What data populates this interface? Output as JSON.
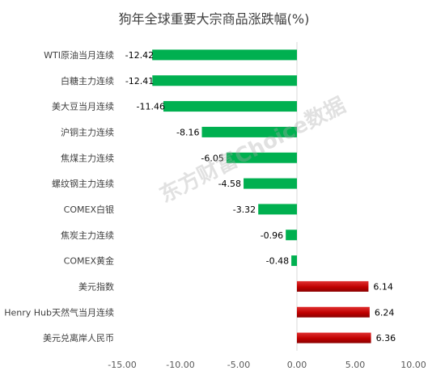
{
  "chart_data": {
    "type": "bar",
    "orientation": "horizontal",
    "title": "狗年全球重要大宗商品涨跌幅(%)",
    "categories": [
      "WTI原油当月连续",
      "白糖主力连续",
      "美大豆当月连续",
      "沪铜主力连续",
      "焦煤主力连续",
      "螺纹钢主力连续",
      "COMEX白银",
      "焦炭主力连续",
      "COMEX黄金",
      "美元指数",
      "Henry Hub天然气当月连续",
      "美元兑离岸人民币"
    ],
    "values": [
      -12.42,
      -12.41,
      -11.46,
      -8.16,
      -6.05,
      -4.58,
      -3.32,
      -0.96,
      -0.48,
      6.14,
      6.24,
      6.36
    ],
    "value_labels": [
      "-12.42",
      "-12.41",
      "-11.46",
      "-8.16",
      "-6.05",
      "-4.58",
      "-3.32",
      "-0.96",
      "-0.48",
      "6.14",
      "6.24",
      "6.36"
    ],
    "xlim": [
      -15,
      10
    ],
    "xticks": [
      -15,
      -10,
      -5,
      0,
      5,
      10
    ],
    "xtick_labels": [
      "-15.00",
      "-10.00",
      "-5.00",
      "0.00",
      "5.00",
      "10.00"
    ],
    "negative_color": "#00B050",
    "positive_color": "#C00000",
    "grid": false,
    "legend": "none",
    "watermark": "东方财富Choice数据"
  }
}
